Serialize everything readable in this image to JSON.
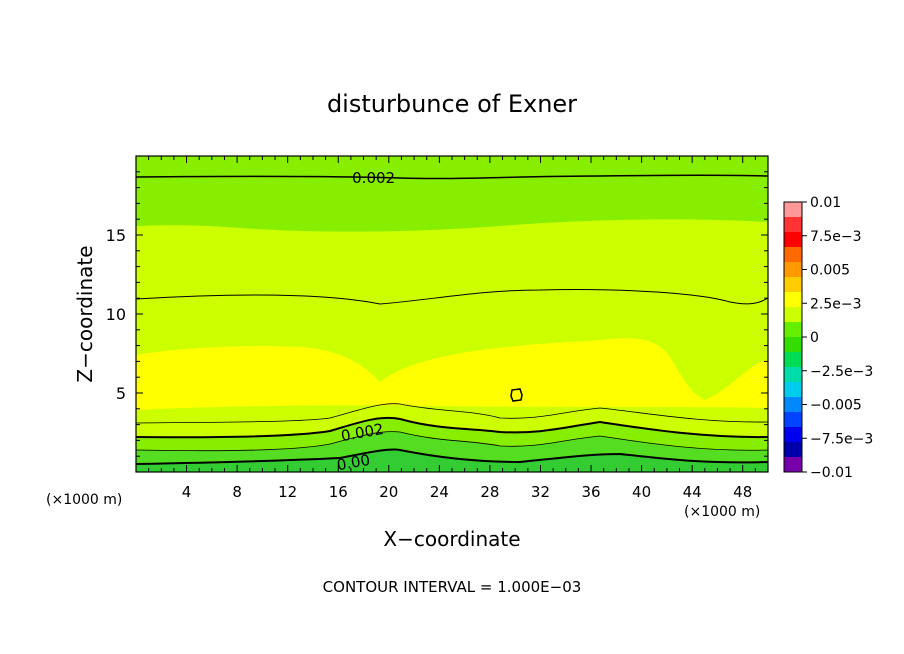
{
  "chart_data": {
    "type": "heatmap",
    "title": "disturbunce of Exner",
    "xlabel": "X−coordinate",
    "ylabel": "Z−coordinate",
    "x_unit_left": "(×1000 m)",
    "x_unit_right": "(×1000 m)",
    "footer": "CONTOUR INTERVAL = 1.000E−03",
    "xlim": [
      0,
      50
    ],
    "ylim": [
      0,
      20
    ],
    "x_ticks": [
      4,
      8,
      12,
      16,
      20,
      24,
      28,
      32,
      36,
      40,
      44,
      48
    ],
    "x_tick_labels": [
      "4",
      "8",
      "12",
      "16",
      "20",
      "24",
      "28",
      "32",
      "36",
      "40",
      "44",
      "48"
    ],
    "y_ticks": [
      5,
      10,
      15
    ],
    "y_tick_labels": [
      "5",
      "10",
      "15"
    ],
    "contour_labels": [
      {
        "text": "0.002",
        "x": 18.8,
        "y": 18.6
      },
      {
        "text": "0.002",
        "x": 17.9,
        "y": 2.5
      },
      {
        "text": "0.00",
        "x": 17.2,
        "y": 0.6
      }
    ],
    "colorbar": {
      "range": [
        -0.01,
        0.01
      ],
      "tick_values": [
        0.01,
        0.0075,
        0.005,
        0.0025,
        0,
        -0.0025,
        -0.005,
        -0.0075,
        -0.01
      ],
      "tick_labels": [
        "0.01",
        "7.5e−3",
        "0.005",
        "2.5e−3",
        "0",
        "−2.5e−3",
        "−0.005",
        "−7.5e−3",
        "−0.01"
      ],
      "colors": [
        "#ff9999",
        "#ff3333",
        "#ff0000",
        "#ff6a00",
        "#ff9900",
        "#ffcc00",
        "#ffff00",
        "#ccff00",
        "#66ee00",
        "#33dd00",
        "#00dd55",
        "#00ddaa",
        "#00ccee",
        "#0088ff",
        "#0044ff",
        "#0000ee",
        "#0000aa",
        "#7700aa"
      ]
    },
    "bands": {
      "levels": [
        0,
        0.001,
        0.002,
        0.003,
        0.004,
        0.005
      ],
      "colors": [
        "#33cc33",
        "#55dd22",
        "#88ee00",
        "#ccff00",
        "#ffff00"
      ]
    }
  }
}
